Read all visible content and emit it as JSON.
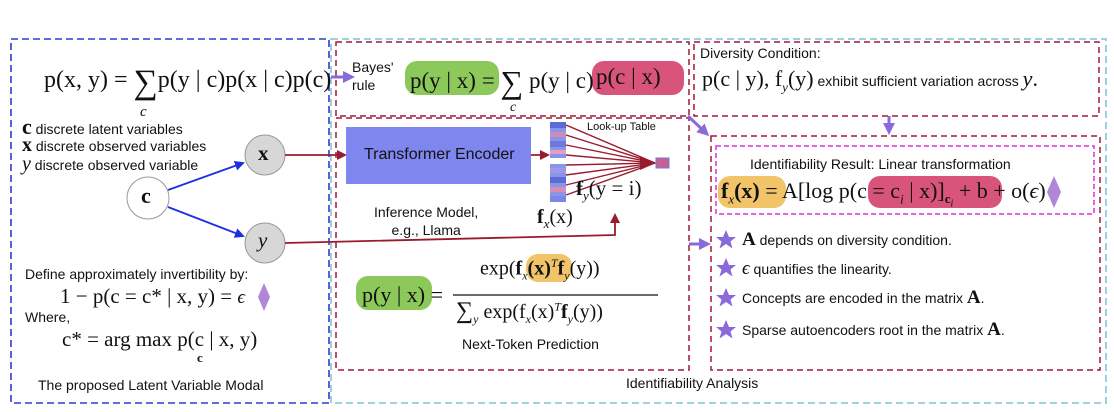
{
  "left_panel": {
    "joint_eq_lhs": "p(x, y) = ",
    "joint_eq_sum": "∑",
    "joint_eq_sub": "c",
    "joint_eq_rhs": "p(y | c)p(x | c)p(c)",
    "def_c_sym": "c",
    "def_c_text": "discrete latent variables",
    "def_x_sym": "x",
    "def_x_text": "discrete observed variables",
    "def_y_sym": "y",
    "def_y_text": "discrete observed variable",
    "node_c": "c",
    "node_x": "x",
    "node_y": "y",
    "invert_title": "Define approximately invertibility by:",
    "invert_eq": "1 − p(c = c* | x, y) = ",
    "invert_eps": "ϵ",
    "where_label": "Where,",
    "argmax_lhs": "c* = arg max",
    "argmax_sub": "c",
    "argmax_rhs": " p(c | x, y)",
    "caption": "The proposed Latent Variable Modal"
  },
  "bayes": {
    "label_line1": "Bayes'",
    "label_line2": "rule",
    "lhs": "p(y | x)",
    "eq": " = ",
    "sum": "∑",
    "sum_sub": "c",
    "mid": "p(y | c)",
    "rhs": "p(c | x)"
  },
  "inference": {
    "encoder_label": "Transformer Encoder",
    "lookup_label": "Look-up Table",
    "fy_label": "f",
    "fy_sub": "y",
    "fy_rest": "(y = i)",
    "fx_label": "f",
    "fx_sub": "x",
    "fx_rest": "(x)",
    "model_line1": "Inference Model,",
    "model_line2": "e.g., Llama",
    "ntp_lhs": "p(y | x)",
    "ntp_eq": " = ",
    "ntp_num_pre": "exp(",
    "ntp_num_fx": "f",
    "ntp_num_fx_sub": "x",
    "ntp_num_fx_rest": "(x)",
    "ntp_num_post": "T",
    "ntp_num_fy": "f",
    "ntp_num_fy_sub": "y",
    "ntp_num_end": "(y))",
    "ntp_den": "∑",
    "ntp_den_sub": "y",
    "ntp_den_rest": " exp(f",
    "ntp_den_fx_sub": "x",
    "ntp_den_mid": "(x)",
    "ntp_den_T": "T",
    "ntp_den_fy": "f",
    "ntp_den_fy_sub": "y",
    "ntp_den_end": "(y))",
    "caption": "Next-Token Prediction"
  },
  "diversity": {
    "title": "Diversity Condition:",
    "expr": "p(c | y), f",
    "expr_sub": "y",
    "expr_rest": "(y)",
    "text": "exhibit sufficient variation across",
    "y": "y",
    "dot": "."
  },
  "result": {
    "title": "Identifiability Result: Linear transformation",
    "fx": "f",
    "fx_sub": "x",
    "fx_rest": "(x)",
    "eq": " = A[log ",
    "pc": "p(c = c",
    "pc_sub": "i",
    "pc_rest": " | x)",
    "bracket_sub": "c",
    "bracket_sub_i": "i",
    "tail": " + b + o(",
    "eps": "ϵ",
    "close": ")"
  },
  "bullets": [
    {
      "sym": "A",
      "text": "depends on diversity condition."
    },
    {
      "sym": "ϵ",
      "text": "quantifies the linearity."
    },
    {
      "sym": "",
      "text": "Concepts are encoded in the matrix",
      "tail": "A",
      "end": "."
    },
    {
      "sym": "",
      "text": "Sparse autoencoders root in the matrix",
      "tail": "A",
      "end": "."
    }
  ],
  "right_caption": "Identifiability Analysis",
  "colors": {
    "blue_dash": "#2d3bd4",
    "teal_dash": "#7fc4d4",
    "red_dash": "#a0183a",
    "magenta_dash": "#e02ee0",
    "green": "#8dc85a",
    "pink": "#d9547a",
    "yellow": "#f2c46a",
    "purple": "#b185d8",
    "encoder": "#7f86ee",
    "arrow_red": "#9b1b2e",
    "arrow_blue": "#1f2fe0",
    "arrow_purple": "#8a6ad8"
  }
}
